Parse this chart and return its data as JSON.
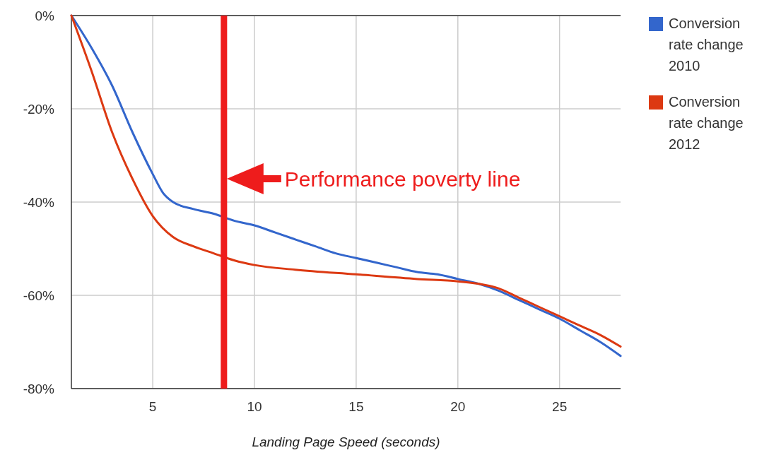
{
  "chart_data": {
    "type": "line",
    "xlabel": "Landing Page Speed (seconds)",
    "xlim": [
      1,
      28
    ],
    "xticks": [
      5,
      10,
      15,
      20,
      25
    ],
    "ylim": [
      -80,
      0
    ],
    "yticks": [
      {
        "value": -80,
        "label": "-80%"
      },
      {
        "value": -60,
        "label": "-60%"
      },
      {
        "value": -40,
        "label": "-40%"
      },
      {
        "value": -20,
        "label": "-20%"
      },
      {
        "value": 0,
        "label": "0%"
      }
    ],
    "grid": true,
    "legend": "right",
    "marker": "none",
    "line_style": "solid",
    "series": [
      {
        "name": "Conversion rate change 2010",
        "color": "#3366cc",
        "x": [
          1,
          2,
          3,
          4,
          5,
          5.5,
          6,
          7,
          8,
          9,
          10,
          11,
          12,
          13,
          14,
          15,
          16,
          17,
          18,
          19,
          20,
          21,
          22,
          23,
          24,
          25,
          26,
          27,
          28
        ],
        "values": [
          0,
          -7,
          -15,
          -25,
          -34,
          -38,
          -40,
          -41.5,
          -42.5,
          -44,
          -45,
          -46.5,
          -48,
          -49.5,
          -51,
          -52,
          -53,
          -54,
          -55,
          -55.5,
          -56.5,
          -57.5,
          -59,
          -61,
          -63,
          -65,
          -67.5,
          -70,
          -73
        ]
      },
      {
        "name": "Conversion rate change 2012",
        "color": "#dc3912",
        "x": [
          1,
          2,
          3,
          4,
          5,
          6,
          7,
          8,
          9,
          10,
          12,
          15,
          18,
          20,
          21,
          22,
          23,
          24,
          25,
          26,
          27,
          28
        ],
        "values": [
          0,
          -12,
          -25,
          -35,
          -43,
          -47.5,
          -49.5,
          -51,
          -52.5,
          -53.5,
          -54.5,
          -55.5,
          -56.5,
          -57,
          -57.5,
          -58.5,
          -60.5,
          -62.5,
          -64.5,
          -66.5,
          -68.5,
          -71
        ]
      }
    ],
    "ref_lines": [
      {
        "axis": "x",
        "value": 8.5,
        "label": "Performance poverty line",
        "color": "#ee1c1c"
      }
    ]
  }
}
